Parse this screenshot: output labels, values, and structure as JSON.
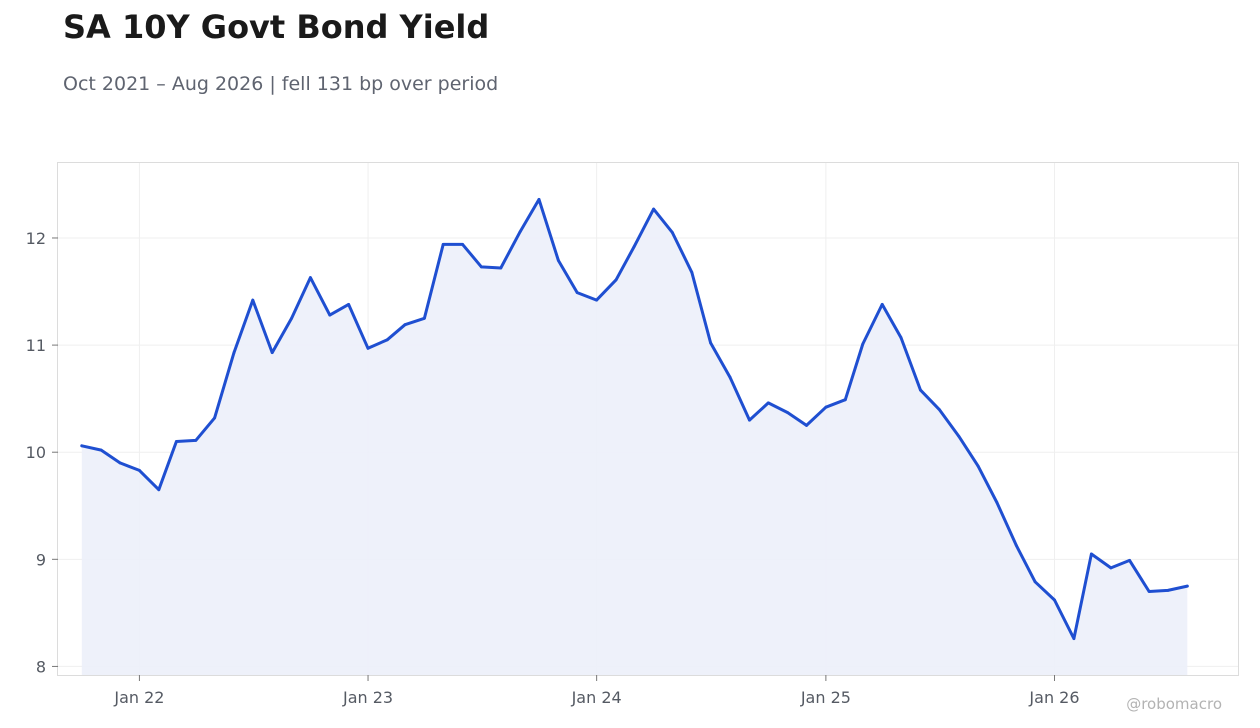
{
  "header": {
    "title": "SA 10Y Govt Bond Yield",
    "subtitle": "Oct 2021 – Aug 2026 | fell 131 bp over period"
  },
  "watermark": "@robomacro",
  "colors": {
    "line": "#1f4fd1",
    "fill": "#ecf0fa",
    "grid": "#efefef",
    "frame": "#dcdcdc"
  },
  "chart_data": {
    "type": "area",
    "grid": true,
    "legend": "none",
    "x_ticks": [
      {
        "label": "Jan 22",
        "date": "2022-01-01"
      },
      {
        "label": "Jan 23",
        "date": "2023-01-01"
      },
      {
        "label": "Jan 24",
        "date": "2024-01-01"
      },
      {
        "label": "Jan 25",
        "date": "2025-01-01"
      },
      {
        "label": "Jan 26",
        "date": "2026-01-01"
      }
    ],
    "y_ticks": [
      8,
      9,
      10,
      11,
      12
    ],
    "xlim": [
      "2021-08-24",
      "2026-10-21"
    ],
    "ylim": [
      7.92,
      12.7
    ],
    "series": [
      {
        "x": [
          "2021-10-01",
          "2021-11-01",
          "2021-12-01",
          "2022-01-01",
          "2022-02-01",
          "2022-03-01",
          "2022-04-01",
          "2022-05-01",
          "2022-06-01",
          "2022-07-01",
          "2022-08-01",
          "2022-09-01",
          "2022-10-01",
          "2022-11-01",
          "2022-12-01",
          "2023-01-01",
          "2023-02-01",
          "2023-03-01",
          "2023-04-01",
          "2023-05-01",
          "2023-06-01",
          "2023-07-01",
          "2023-08-01",
          "2023-09-01",
          "2023-10-01",
          "2023-11-01",
          "2023-12-01",
          "2024-01-01",
          "2024-02-01",
          "2024-03-01",
          "2024-04-01",
          "2024-05-01",
          "2024-06-01",
          "2024-07-01",
          "2024-08-01",
          "2024-09-01",
          "2024-10-01",
          "2024-11-01",
          "2024-12-01",
          "2025-01-01",
          "2025-02-01",
          "2025-03-01",
          "2025-04-01",
          "2025-05-01",
          "2025-06-01",
          "2025-07-01",
          "2025-08-01",
          "2025-09-01",
          "2025-10-01",
          "2025-11-01",
          "2025-12-01",
          "2026-01-01",
          "2026-02-01",
          "2026-03-01",
          "2026-04-01",
          "2026-05-01",
          "2026-06-01",
          "2026-07-01",
          "2026-08-01"
        ],
        "values": [
          10.06,
          10.02,
          9.9,
          9.83,
          9.65,
          10.1,
          10.11,
          10.32,
          10.93,
          11.42,
          10.93,
          11.25,
          11.63,
          11.28,
          11.38,
          10.97,
          11.05,
          11.19,
          11.25,
          11.94,
          11.94,
          11.73,
          11.72,
          12.06,
          12.36,
          11.79,
          11.49,
          11.42,
          11.61,
          11.92,
          12.27,
          12.05,
          11.68,
          11.02,
          10.7,
          10.3,
          10.46,
          10.37,
          10.25,
          10.42,
          10.49,
          11.01,
          11.38,
          11.07,
          10.58,
          10.4,
          10.15,
          9.87,
          9.53,
          9.13,
          8.79,
          8.62,
          8.26,
          9.05,
          8.92,
          8.99,
          8.7,
          8.71,
          8.75
        ]
      }
    ]
  }
}
